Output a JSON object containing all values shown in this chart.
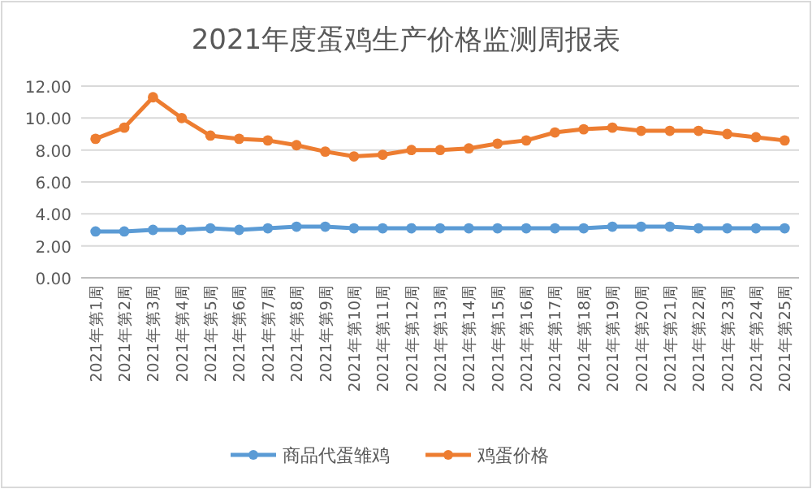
{
  "chart_data": {
    "type": "line",
    "title": "2021年度蛋鸡生产价格监测周报表",
    "categories": [
      "2021年第1周",
      "2021年第2周",
      "2021年第3周",
      "2021年第4周",
      "2021年第5周",
      "2021年第6周",
      "2021年第7周",
      "2021年第8周",
      "2021年第9周",
      "2021年第10周",
      "2021年第11周",
      "2021年第12周",
      "2021年第13周",
      "2021年第14周",
      "2021年第15周",
      "2021年第16周",
      "2021年第17周",
      "2021年第18周",
      "2021年第19周",
      "2021年第20周",
      "2021年第21周",
      "2021年第22周",
      "2021年第23周",
      "2021年第24周",
      "2021年第25周"
    ],
    "series": [
      {
        "name": "商品代蛋雏鸡",
        "color": "#5b9bd5",
        "values": [
          2.9,
          2.9,
          3.0,
          3.0,
          3.1,
          3.0,
          3.1,
          3.2,
          3.2,
          3.1,
          3.1,
          3.1,
          3.1,
          3.1,
          3.1,
          3.1,
          3.1,
          3.1,
          3.2,
          3.2,
          3.2,
          3.1,
          3.1,
          3.1,
          3.1
        ]
      },
      {
        "name": "鸡蛋价格",
        "color": "#ed7d31",
        "values": [
          8.7,
          9.4,
          11.3,
          10.0,
          8.9,
          8.7,
          8.6,
          8.3,
          7.9,
          7.6,
          7.7,
          8.0,
          8.0,
          8.1,
          8.4,
          8.6,
          9.1,
          9.3,
          9.4,
          9.2,
          9.2,
          9.2,
          9.0,
          8.8,
          8.6
        ]
      }
    ],
    "ylim": [
      0,
      12
    ],
    "yticks": [
      {
        "value": 0,
        "label": "0.00"
      },
      {
        "value": 2,
        "label": "2.00"
      },
      {
        "value": 4,
        "label": "4.00"
      },
      {
        "value": 6,
        "label": "6.00"
      },
      {
        "value": 8,
        "label": "8.00"
      },
      {
        "value": 10,
        "label": "10.00"
      },
      {
        "value": 12,
        "label": "12.00"
      }
    ],
    "grid": "y",
    "legend": "bottom",
    "marker": "circle",
    "line_style": "solid"
  }
}
